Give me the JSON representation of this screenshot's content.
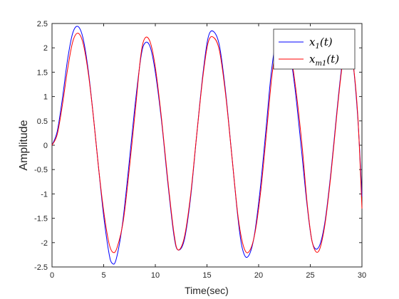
{
  "chart_data": {
    "type": "line",
    "xlabel": "Time(sec)",
    "ylabel": "Amplitude",
    "xlim": [
      0,
      30
    ],
    "ylim": [
      -2.5,
      2.5
    ],
    "xticks": [
      0,
      5,
      10,
      15,
      20,
      25,
      30
    ],
    "yticks": [
      -2.5,
      -2,
      -1.5,
      -1,
      -0.5,
      0,
      0.5,
      1,
      1.5,
      2,
      2.5
    ],
    "grid": false,
    "legend_position": "top-right",
    "series": [
      {
        "name_base": "x",
        "name_sub": "1",
        "name_arg": "(t)",
        "color": "#0000ff",
        "x": [
          0,
          0.5,
          1.0,
          1.5,
          2.0,
          2.5,
          3.0,
          3.5,
          4.0,
          4.5,
          5.0,
          5.5,
          5.8,
          6.2,
          6.8,
          7.4,
          8.0,
          8.6,
          9.0,
          9.5,
          10.0,
          10.6,
          11.2,
          11.8,
          12.2,
          12.8,
          13.4,
          14.0,
          14.6,
          15.1,
          15.6,
          16.2,
          16.8,
          17.4,
          18.0,
          18.4,
          18.9,
          19.5,
          20.1,
          20.7,
          21.2,
          21.7,
          22.3,
          22.9,
          23.5,
          24.1,
          24.7,
          25.2,
          25.8,
          26.4,
          27.0,
          27.6,
          28.1,
          28.6,
          29.1,
          29.6,
          30.0
        ],
        "y": [
          0,
          0.28,
          0.95,
          1.75,
          2.3,
          2.44,
          2.2,
          1.55,
          0.6,
          -0.45,
          -1.45,
          -2.2,
          -2.42,
          -2.35,
          -1.65,
          -0.5,
          0.75,
          1.8,
          2.1,
          2.02,
          1.5,
          0.5,
          -0.75,
          -1.85,
          -2.15,
          -1.95,
          -1.1,
          0.2,
          1.45,
          2.2,
          2.34,
          2.05,
          1.1,
          -0.2,
          -1.5,
          -2.1,
          -2.3,
          -1.95,
          -1.0,
          0.3,
          1.45,
          2.15,
          2.3,
          2.05,
          1.2,
          0.0,
          -1.25,
          -2.0,
          -2.1,
          -1.6,
          -0.55,
          0.75,
          1.7,
          2.2,
          1.75,
          0.55,
          -1.05
        ]
      },
      {
        "name_base": "x",
        "name_sub": "m1",
        "name_arg": "(t)",
        "color": "#ff0000",
        "x": [
          0,
          0.5,
          1.0,
          1.5,
          2.0,
          2.5,
          3.0,
          3.5,
          4.0,
          4.5,
          5.0,
          5.5,
          5.9,
          6.3,
          6.9,
          7.5,
          8.1,
          8.6,
          9.0,
          9.5,
          10.0,
          10.6,
          11.2,
          11.8,
          12.2,
          12.8,
          13.4,
          14.0,
          14.6,
          15.1,
          15.6,
          16.2,
          16.8,
          17.4,
          18.0,
          18.5,
          19.0,
          19.6,
          20.2,
          20.8,
          21.3,
          21.8,
          22.4,
          23.0,
          23.6,
          24.2,
          24.7,
          25.2,
          25.8,
          26.4,
          27.0,
          27.6,
          28.1,
          28.6,
          29.1,
          29.6,
          30.0
        ],
        "y": [
          0,
          0.22,
          0.82,
          1.55,
          2.12,
          2.3,
          2.1,
          1.5,
          0.6,
          -0.45,
          -1.35,
          -2.0,
          -2.2,
          -2.1,
          -1.55,
          -0.45,
          0.8,
          1.85,
          2.2,
          2.12,
          1.6,
          0.55,
          -0.7,
          -1.8,
          -2.15,
          -1.9,
          -1.05,
          0.2,
          1.4,
          2.1,
          2.22,
          1.95,
          1.05,
          -0.2,
          -1.45,
          -2.05,
          -2.2,
          -1.85,
          -0.95,
          0.35,
          1.45,
          2.1,
          2.25,
          2.0,
          1.15,
          0.0,
          -1.2,
          -2.0,
          -2.18,
          -1.65,
          -0.6,
          0.7,
          1.65,
          2.15,
          1.75,
          0.6,
          -1.3
        ]
      }
    ]
  }
}
